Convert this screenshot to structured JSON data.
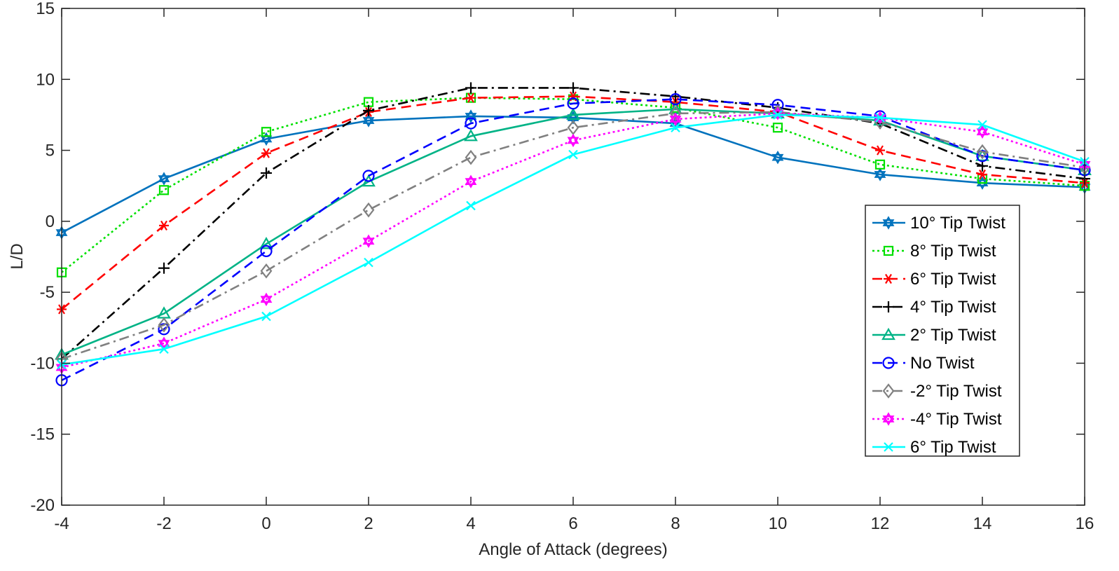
{
  "chart_data": {
    "type": "line",
    "xlabel": "Angle of Attack (degrees)",
    "ylabel": "L/D",
    "xlim": [
      -4,
      16
    ],
    "ylim": [
      -20,
      15
    ],
    "x": [
      -4,
      -2,
      0,
      2,
      4,
      6,
      8,
      10,
      12,
      14,
      16
    ],
    "xticks": [
      "-4",
      "-2",
      "0",
      "2",
      "4",
      "6",
      "8",
      "10",
      "12",
      "14",
      "16"
    ],
    "yticks": [
      "-20",
      "-15",
      "-10",
      "-5",
      "0",
      "5",
      "10",
      "15"
    ],
    "legend_position": "right",
    "series": [
      {
        "name": "10° Tip Twist",
        "color": "#0072BD",
        "dash": "solid",
        "marker": "hexagram",
        "values": [
          -0.8,
          3.0,
          5.8,
          7.1,
          7.4,
          7.3,
          6.9,
          4.5,
          3.3,
          2.7,
          2.4
        ]
      },
      {
        "name": "8° Tip Twist",
        "color": "#00E000",
        "dash": "dot",
        "marker": "square",
        "values": [
          -3.6,
          2.2,
          6.3,
          8.4,
          8.7,
          8.6,
          8.0,
          6.6,
          4.0,
          3.0,
          2.5
        ]
      },
      {
        "name": "6° Tip Twist",
        "color": "#FF0000",
        "dash": "dash",
        "marker": "asterisk",
        "values": [
          -6.2,
          -0.3,
          4.8,
          7.7,
          8.7,
          8.8,
          8.4,
          7.7,
          5.0,
          3.3,
          2.7
        ]
      },
      {
        "name": "4° Tip Twist",
        "color": "#000000",
        "dash": "dashdot",
        "marker": "plus",
        "values": [
          -9.7,
          -3.3,
          3.4,
          7.8,
          9.4,
          9.4,
          8.8,
          8.0,
          6.9,
          3.9,
          3.0
        ]
      },
      {
        "name": "2° Tip Twist",
        "color": "#00B386",
        "dash": "solid",
        "marker": "triangle",
        "values": [
          -9.4,
          -6.5,
          -1.6,
          2.8,
          6.0,
          7.5,
          7.9,
          7.6,
          7.1,
          4.6,
          3.6
        ]
      },
      {
        "name": "No Twist",
        "color": "#0000FF",
        "dash": "dash",
        "marker": "circle",
        "values": [
          -11.2,
          -7.6,
          -2.1,
          3.2,
          6.9,
          8.3,
          8.6,
          8.2,
          7.4,
          4.6,
          3.6
        ]
      },
      {
        "name": "-2° Tip Twist",
        "color": "#808080",
        "dash": "dashdot",
        "marker": "diamond",
        "values": [
          -9.7,
          -7.3,
          -3.5,
          0.8,
          4.5,
          6.6,
          7.6,
          7.7,
          7.0,
          4.9,
          3.8
        ]
      },
      {
        "name": "-4° Tip Twist",
        "color": "#FF00FF",
        "dash": "dot",
        "marker": "hexagram",
        "values": [
          -10.3,
          -8.6,
          -5.5,
          -1.4,
          2.8,
          5.7,
          7.2,
          7.6,
          7.3,
          6.3,
          4.0
        ]
      },
      {
        "name": "6° Tip Twist",
        "color": "#00FFFF",
        "dash": "solid",
        "marker": "x",
        "values": [
          -10.1,
          -9.0,
          -6.7,
          -2.9,
          1.1,
          4.7,
          6.6,
          7.5,
          7.3,
          6.8,
          4.2
        ]
      }
    ]
  }
}
